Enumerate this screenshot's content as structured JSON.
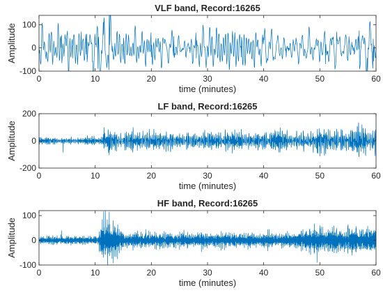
{
  "chart_data": [
    {
      "type": "line",
      "title": "VLF band, Record:16265",
      "xlabel": "time (minutes)",
      "ylabel": "Amplitude",
      "xlim": [
        0,
        60
      ],
      "ylim": [
        -100,
        140
      ],
      "xticks": [
        0,
        10,
        20,
        30,
        40,
        50,
        60
      ],
      "yticks": [
        -100,
        0,
        100
      ],
      "xtick_labels": [
        "0",
        "10",
        "20",
        "30",
        "40",
        "50",
        "60"
      ],
      "ytick_labels": [
        "-100",
        "0",
        "100"
      ],
      "grid": false,
      "series": [
        {
          "color": "#0072BD",
          "x": [
            0,
            2,
            4,
            6,
            7.5,
            8.5,
            9.5,
            10.5,
            11.5,
            12.5,
            13.5,
            15,
            17,
            20,
            24,
            28,
            32,
            36,
            40,
            44,
            48,
            51,
            53,
            55,
            57,
            58.5,
            59.5,
            60
          ],
          "values": [
            15,
            -20,
            55,
            -45,
            70,
            60,
            -60,
            -90,
            55,
            140,
            20,
            -50,
            40,
            -40,
            50,
            -45,
            60,
            -40,
            45,
            -40,
            60,
            -70,
            70,
            -55,
            75,
            -100,
            40,
            0
          ],
          "signal": {
            "fs_per_minute": 16,
            "band_cycles_per_minute": [
              0.6,
              2.5
            ],
            "amplitude_envelope": [
              [
                0,
                50
              ],
              [
                9,
                60
              ],
              [
                11.5,
                90
              ],
              [
                13,
                75
              ],
              [
                16,
                45
              ],
              [
                45,
                45
              ],
              [
                52,
                60
              ],
              [
                60,
                60
              ]
            ]
          }
        }
      ]
    },
    {
      "type": "line",
      "title": "LF band, Record:16265",
      "xlabel": "time (minutes)",
      "ylabel": "Amplitude",
      "xlim": [
        0,
        60
      ],
      "ylim": [
        -200,
        200
      ],
      "xticks": [
        0,
        10,
        20,
        30,
        40,
        50,
        60
      ],
      "yticks": [
        -200,
        0,
        200
      ],
      "xtick_labels": [
        "0",
        "10",
        "20",
        "30",
        "40",
        "50",
        "60"
      ],
      "ytick_labels": [
        "-200",
        "0",
        "200"
      ],
      "grid": false,
      "series": [
        {
          "color": "#0072BD",
          "x": [
            4.3,
            11.6,
            12.5,
            18.5,
            23,
            29.5,
            42,
            49.5,
            51.5,
            57.5,
            59
          ],
          "values": [
            -85,
            100,
            -105,
            75,
            -75,
            80,
            80,
            -90,
            85,
            120,
            -70
          ],
          "signal": {
            "fs_per_minute": 40,
            "band_cycles_per_minute": [
              3,
              9
            ],
            "amplitude_envelope": [
              [
                0,
                18
              ],
              [
                11,
                18
              ],
              [
                11.5,
                55
              ],
              [
                13,
                50
              ],
              [
                40,
                45
              ],
              [
                48,
                55
              ],
              [
                51,
                65
              ],
              [
                60,
                70
              ]
            ]
          }
        }
      ]
    },
    {
      "type": "line",
      "title": "HF band, Record:16265",
      "xlabel": "time (minutes)",
      "ylabel": "Amplitude",
      "xlim": [
        0,
        60
      ],
      "ylim": [
        -100,
        120
      ],
      "xticks": [
        0,
        10,
        20,
        30,
        40,
        50,
        60
      ],
      "yticks": [
        -100,
        0,
        100
      ],
      "xtick_labels": [
        "0",
        "10",
        "20",
        "30",
        "40",
        "50",
        "60"
      ],
      "ytick_labels": [
        "-100",
        "0",
        "100"
      ],
      "grid": false,
      "series": [
        {
          "color": "#0072BD",
          "x": [
            4,
            11.8,
            12.2,
            12.5,
            13,
            19,
            24,
            33,
            41,
            49.5,
            50,
            57.5
          ],
          "values": [
            40,
            120,
            -100,
            115,
            -75,
            45,
            -30,
            -40,
            45,
            -90,
            60,
            45
          ],
          "signal": {
            "fs_per_minute": 60,
            "band_cycles_per_minute": [
              9,
              24
            ],
            "amplitude_envelope": [
              [
                0,
                12
              ],
              [
                10.5,
                12
              ],
              [
                11.5,
                65
              ],
              [
                13,
                55
              ],
              [
                15,
                22
              ],
              [
                45,
                20
              ],
              [
                48,
                35
              ],
              [
                60,
                35
              ]
            ]
          }
        }
      ]
    }
  ]
}
